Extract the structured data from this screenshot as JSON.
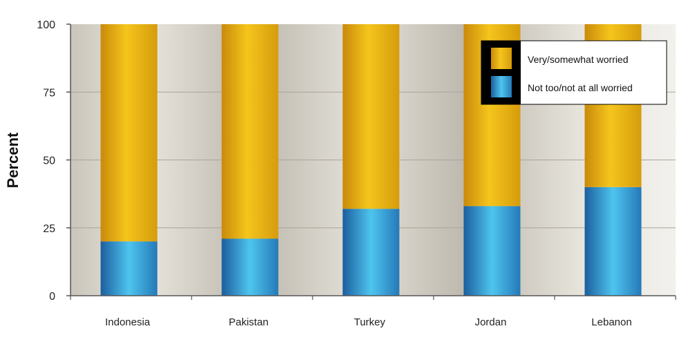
{
  "chart_data": {
    "type": "bar",
    "stacked": true,
    "categories": [
      "Indonesia",
      "Pakistan",
      "Turkey",
      "Jordan",
      "Lebanon"
    ],
    "series": [
      {
        "name": "Not too/not at all worried",
        "values": [
          20,
          21,
          32,
          33,
          40
        ],
        "color": "#2f9bd3"
      },
      {
        "name": "Very/somewhat worried",
        "values": [
          80,
          79,
          68,
          67,
          60
        ],
        "color": "#ecae10"
      }
    ],
    "ylabel": "Percent",
    "ylim": [
      0,
      100
    ],
    "yticks": [
      "0",
      "25",
      "50",
      "75",
      "100"
    ],
    "grid": true,
    "legend_position": "top-right",
    "legend": [
      {
        "label": "Very/somewhat worried",
        "color": "#ecae10"
      },
      {
        "label": "Not too/not at all worried",
        "color": "#2f9bd3"
      }
    ]
  }
}
